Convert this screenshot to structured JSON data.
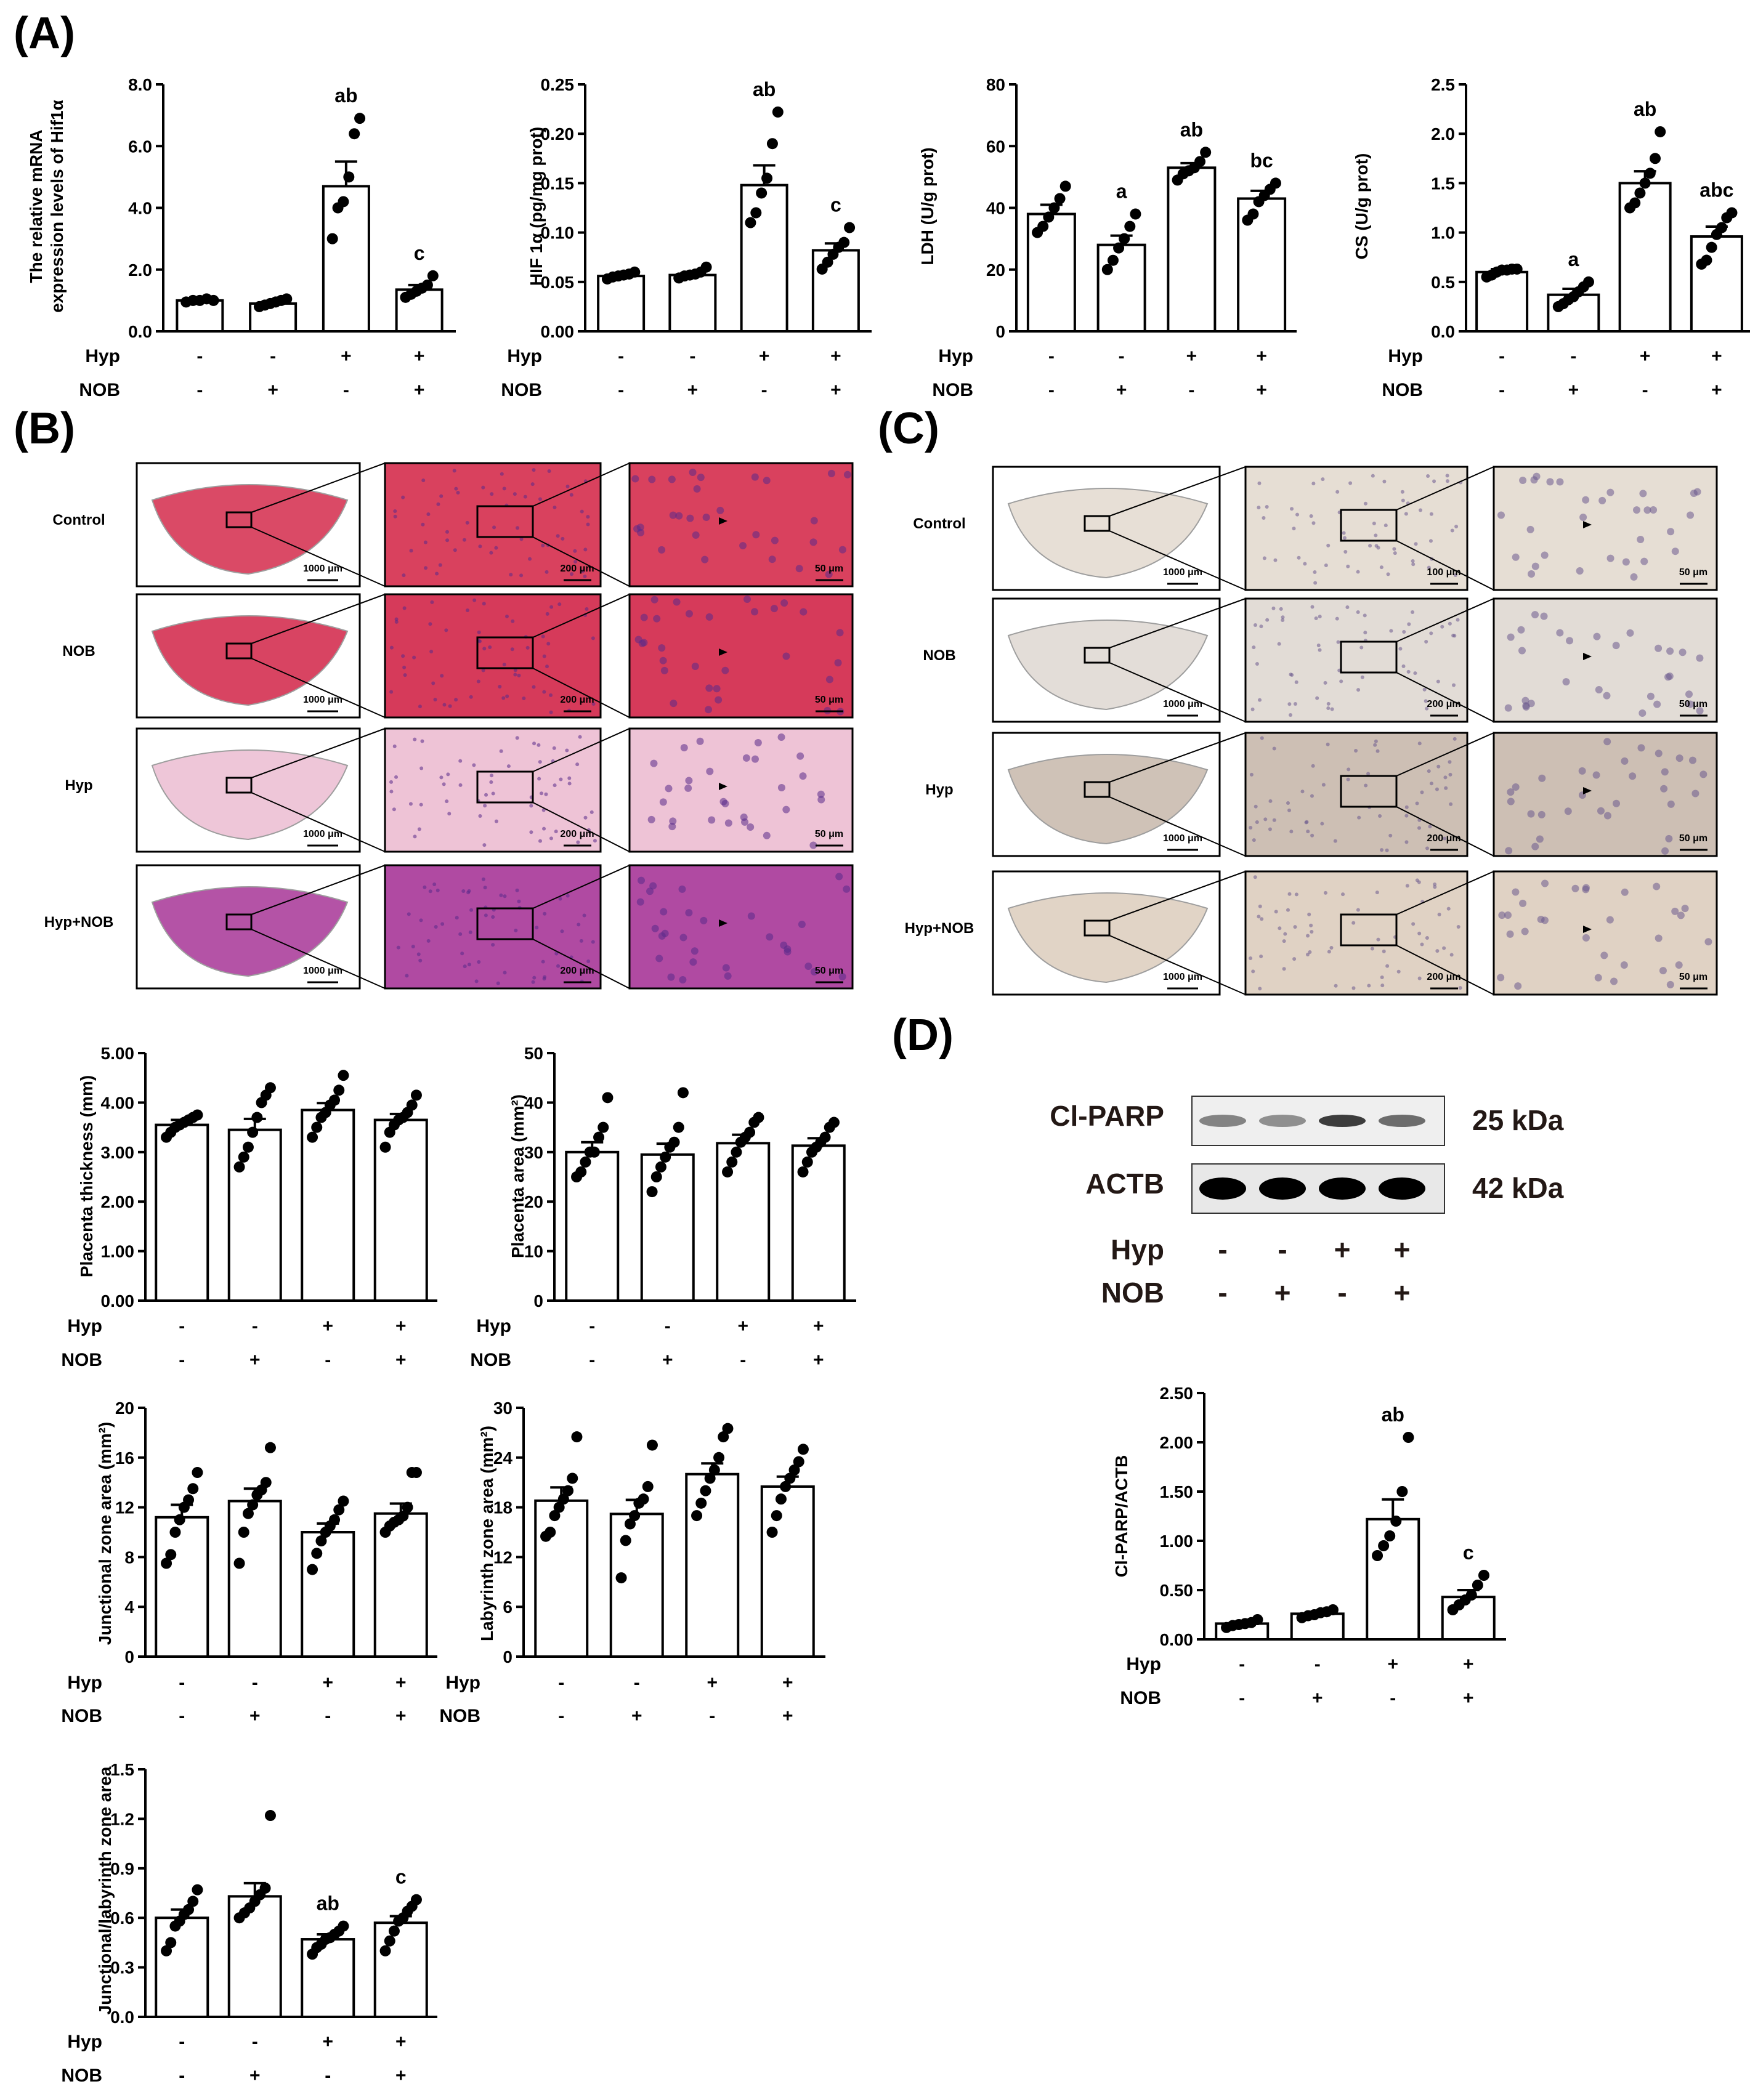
{
  "panels": {
    "A": "(A)",
    "B": "(B)",
    "C": "(C)",
    "D": "(D)"
  },
  "conditions": {
    "hyp_label": "Hyp",
    "nob_label": "NOB",
    "hyp_signs": [
      "-",
      "-",
      "+",
      "+"
    ],
    "nob_signs": [
      "-",
      "+",
      "-",
      "+"
    ]
  },
  "histology": {
    "rows": [
      "Control",
      "NOB",
      "Hyp",
      "Hyp+NOB"
    ],
    "B": {
      "scale_whole": [
        "1000 μm",
        "1000 μm",
        "1000 μm",
        "1000 μm"
      ],
      "scale_mid": [
        "200 μm",
        "200 μm",
        "200 μm",
        "200 μm"
      ],
      "scale_zoom": [
        "50 μm",
        "50 μm",
        "50 μm",
        "50 μm"
      ],
      "stain_colors": [
        "#d9415e",
        "#d63a5a",
        "#eec3d6",
        "#b04aa2"
      ]
    },
    "C": {
      "scale_whole": [
        "1000 μm",
        "1000 μm",
        "1000 μm",
        "1000 μm"
      ],
      "scale_mid": [
        "100 μm",
        "200 μm",
        "200 μm",
        "200 μm"
      ],
      "scale_zoom": [
        "50 μm",
        "50 μm",
        "50 μm",
        "50 μm"
      ],
      "stain_colors": [
        "#e6ded4",
        "#e2dcd6",
        "#cdbfb4",
        "#e0d2c4"
      ]
    }
  },
  "western": {
    "bands": [
      {
        "label": "Cl-PARP",
        "size": "25 kDa",
        "intensity": [
          0.45,
          0.4,
          0.75,
          0.55
        ]
      },
      {
        "label": "ACTB",
        "size": "42 kDa",
        "intensity": [
          1,
          1,
          1,
          1
        ]
      }
    ]
  },
  "chart_data": [
    {
      "id": "hif1a_mrna",
      "type": "bar",
      "ylabel": "The relative mRNA expression levels of Hif1α",
      "ylabel_lines": [
        "The relative mRNA",
        "expression levels of Hif1α"
      ],
      "yticks": [
        "0.0",
        "2.0",
        "4.0",
        "6.0",
        "8.0"
      ],
      "ylim": [
        0,
        8
      ],
      "values": [
        1.0,
        0.9,
        4.7,
        1.35
      ],
      "errors": [
        0.06,
        0.06,
        0.8,
        0.15
      ],
      "points": [
        [
          0.95,
          1.0,
          1.0,
          1.05,
          1.0
        ],
        [
          0.8,
          0.85,
          0.9,
          0.95,
          1.0,
          1.05
        ],
        [
          3.0,
          4.0,
          4.2,
          5.0,
          6.4,
          6.9
        ],
        [
          1.1,
          1.2,
          1.3,
          1.4,
          1.5,
          1.8
        ]
      ],
      "labels": [
        "",
        "",
        "ab",
        "c"
      ]
    },
    {
      "id": "hif1a_protein",
      "type": "bar",
      "ylabel": "HIF 1α (pg/mg prot)",
      "yticks": [
        "0.00",
        "0.05",
        "0.10",
        "0.15",
        "0.20",
        "0.25"
      ],
      "ylim": [
        0,
        0.25
      ],
      "values": [
        0.056,
        0.057,
        0.148,
        0.082
      ],
      "errors": [
        0.002,
        0.002,
        0.02,
        0.007
      ],
      "points": [
        [
          0.053,
          0.055,
          0.056,
          0.057,
          0.058,
          0.06
        ],
        [
          0.054,
          0.056,
          0.057,
          0.058,
          0.06,
          0.065
        ],
        [
          0.11,
          0.12,
          0.14,
          0.155,
          0.19,
          0.222
        ],
        [
          0.063,
          0.07,
          0.078,
          0.085,
          0.09,
          0.105
        ]
      ],
      "labels": [
        "",
        "",
        "ab",
        "c"
      ]
    },
    {
      "id": "ldh",
      "type": "bar",
      "ylabel": "LDH (U/g prot)",
      "yticks": [
        "0",
        "20",
        "40",
        "60",
        "80"
      ],
      "ylim": [
        0,
        80
      ],
      "values": [
        38,
        28,
        53,
        43
      ],
      "errors": [
        3,
        3,
        1.5,
        2.5
      ],
      "points": [
        [
          32,
          34,
          37,
          40,
          43,
          47
        ],
        [
          20,
          23,
          27,
          30,
          34,
          38
        ],
        [
          49,
          51,
          52,
          53,
          55,
          58
        ],
        [
          36,
          38,
          42,
          44,
          46,
          48
        ]
      ],
      "labels": [
        "",
        "a",
        "ab",
        "bc"
      ]
    },
    {
      "id": "cs",
      "type": "bar",
      "ylabel": "CS (U/g prot)",
      "yticks": [
        "0.0",
        "0.5",
        "1.0",
        "1.5",
        "2.0",
        "2.5"
      ],
      "ylim": [
        0,
        2.5
      ],
      "values": [
        0.6,
        0.37,
        1.5,
        0.96
      ],
      "errors": [
        0.03,
        0.06,
        0.12,
        0.1
      ],
      "points": [
        [
          0.55,
          0.57,
          0.6,
          0.62,
          0.62,
          0.63,
          0.63
        ],
        [
          0.25,
          0.28,
          0.32,
          0.35,
          0.4,
          0.45,
          0.5
        ],
        [
          1.25,
          1.3,
          1.4,
          1.5,
          1.6,
          1.75,
          2.02
        ],
        [
          0.68,
          0.72,
          0.85,
          0.98,
          1.05,
          1.15,
          1.2
        ]
      ],
      "labels": [
        "",
        "a",
        "ab",
        "abc"
      ]
    },
    {
      "id": "placenta_thickness",
      "type": "bar",
      "ylabel": "Placenta thickness (mm)",
      "yticks": [
        "0.00",
        "1.00",
        "2.00",
        "3.00",
        "4.00",
        "5.00"
      ],
      "ylim": [
        0,
        5
      ],
      "values": [
        3.55,
        3.45,
        3.85,
        3.65
      ],
      "errors": [
        0.1,
        0.22,
        0.14,
        0.12
      ],
      "points": [
        [
          3.3,
          3.4,
          3.5,
          3.55,
          3.6,
          3.65,
          3.7,
          3.75
        ],
        [
          2.7,
          2.9,
          3.1,
          3.4,
          3.7,
          4.0,
          4.15,
          4.3
        ],
        [
          3.3,
          3.5,
          3.7,
          3.8,
          3.95,
          4.05,
          4.25,
          4.55
        ],
        [
          3.1,
          3.4,
          3.55,
          3.65,
          3.7,
          3.8,
          3.95,
          4.15
        ]
      ],
      "labels": [
        "",
        "",
        "",
        ""
      ]
    },
    {
      "id": "placenta_area",
      "type": "bar",
      "ylabel": "Placenta area (mm²)",
      "yticks": [
        "0",
        "10",
        "20",
        "30",
        "40",
        "50"
      ],
      "ylim": [
        0,
        50
      ],
      "values": [
        30,
        29.5,
        31.8,
        31.3
      ],
      "errors": [
        2,
        2.2,
        1.7,
        1.5
      ],
      "points": [
        [
          25,
          26,
          28,
          30,
          30,
          33,
          35,
          41
        ],
        [
          22,
          25,
          27,
          29,
          31,
          32,
          35,
          42
        ],
        [
          26,
          28,
          30,
          32,
          33,
          34,
          36,
          37
        ],
        [
          26,
          28,
          30,
          31,
          32,
          33,
          35,
          36
        ]
      ],
      "labels": [
        "",
        "",
        "",
        ""
      ]
    },
    {
      "id": "junctional_zone",
      "type": "bar",
      "ylabel": "Junctional zone area (mm²)",
      "yticks": [
        "0",
        "4",
        "8",
        "12",
        "16",
        "20"
      ],
      "ylim": [
        0,
        20
      ],
      "values": [
        11.2,
        12.5,
        10,
        11.5
      ],
      "errors": [
        1,
        1,
        0.7,
        0.8
      ],
      "points": [
        [
          7.5,
          8.2,
          10,
          11,
          12,
          12.6,
          13.5,
          14.8
        ],
        [
          7.5,
          10,
          11.5,
          12.2,
          13,
          13.4,
          14,
          16.8
        ],
        [
          7,
          8.3,
          9.3,
          10,
          10.5,
          11,
          11.8,
          12.5
        ],
        [
          10,
          10.5,
          10.8,
          11,
          11.3,
          12,
          14.8,
          14.8
        ]
      ],
      "labels": [
        "",
        "",
        "",
        ""
      ]
    },
    {
      "id": "labyrinth_zone",
      "type": "bar",
      "ylabel": "Labyrinth zone area (mm²)",
      "yticks": [
        "0",
        "6",
        "12",
        "18",
        "24",
        "30"
      ],
      "ylim": [
        0,
        30
      ],
      "values": [
        18.8,
        17.2,
        22,
        20.5
      ],
      "errors": [
        1.6,
        1.7,
        1.3,
        1.2
      ],
      "points": [
        [
          14.5,
          15,
          17,
          18,
          19,
          20,
          21.5,
          26.5
        ],
        [
          9.5,
          14,
          16,
          17,
          18.5,
          19,
          20.5,
          25.5
        ],
        [
          17,
          18.5,
          20,
          21.5,
          22.5,
          24,
          26.5,
          27.5
        ],
        [
          15,
          17,
          19,
          20.5,
          21.5,
          22.5,
          23.5,
          25
        ]
      ],
      "labels": [
        "",
        "",
        "",
        ""
      ]
    },
    {
      "id": "junctional_labyrinth",
      "type": "bar",
      "ylabel": "Junctional/labyrinth zone area",
      "yticks": [
        "0.0",
        "0.3",
        "0.6",
        "0.9",
        "1.2",
        "1.5"
      ],
      "ylim": [
        0,
        1.5
      ],
      "values": [
        0.6,
        0.73,
        0.47,
        0.57
      ],
      "errors": [
        0.05,
        0.08,
        0.03,
        0.04
      ],
      "points": [
        [
          0.4,
          0.45,
          0.55,
          0.58,
          0.62,
          0.65,
          0.7,
          0.77
        ],
        [
          0.6,
          0.63,
          0.66,
          0.7,
          0.74,
          0.78,
          1.22
        ],
        [
          0.38,
          0.42,
          0.44,
          0.47,
          0.48,
          0.5,
          0.52,
          0.55
        ],
        [
          0.4,
          0.46,
          0.52,
          0.58,
          0.6,
          0.64,
          0.67,
          0.71
        ]
      ],
      "labels": [
        "",
        "",
        "ab",
        "c"
      ]
    },
    {
      "id": "clparp_actb",
      "type": "bar",
      "ylabel": "Cl-PARP/ACTB",
      "yticks": [
        "0.00",
        "0.50",
        "1.00",
        "1.50",
        "2.00",
        "2.50"
      ],
      "ylim": [
        0,
        2.5
      ],
      "values": [
        0.16,
        0.26,
        1.22,
        0.43
      ],
      "errors": [
        0.02,
        0.02,
        0.2,
        0.07
      ],
      "points": [
        [
          0.12,
          0.14,
          0.15,
          0.16,
          0.17,
          0.2
        ],
        [
          0.22,
          0.24,
          0.25,
          0.27,
          0.28,
          0.3
        ],
        [
          0.85,
          0.95,
          1.05,
          1.2,
          1.5,
          2.05
        ],
        [
          0.3,
          0.35,
          0.4,
          0.45,
          0.55,
          0.65
        ]
      ],
      "labels": [
        "",
        "",
        "ab",
        "c"
      ]
    }
  ]
}
